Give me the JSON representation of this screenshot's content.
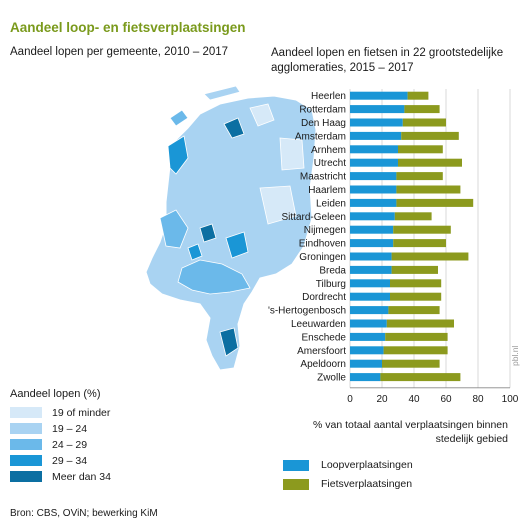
{
  "title": "Aandeel loop- en fietsverplaatsingen",
  "left_panel": {
    "subtitle": "Aandeel lopen per gemeente, 2010 – 2017",
    "legend_title": "Aandeel lopen (%)",
    "legend": [
      {
        "label": "19 of minder",
        "color": "#d6e9f8"
      },
      {
        "label": "19 – 24",
        "color": "#a9d3f2"
      },
      {
        "label": "24 – 29",
        "color": "#6bb9ea"
      },
      {
        "label": "29 – 34",
        "color": "#1a96d6"
      },
      {
        "label": "Meer dan 34",
        "color": "#0c6fa2"
      }
    ]
  },
  "source": "Bron: CBS, OViN; bewerking KiM",
  "credit": "pbl.nl",
  "chart_data": {
    "type": "bar",
    "orientation": "horizontal",
    "stacked": true,
    "title": "Aandeel lopen en fietsen in 22 grootstedelijke agglomeraties, 2015 – 2017",
    "xlabel": "% van totaal aantal verplaatsingen binnen stedelijk gebied",
    "xlim": [
      0,
      100
    ],
    "xticks": [
      0,
      20,
      40,
      60,
      80,
      100
    ],
    "grid": true,
    "categories": [
      "Heerlen",
      "Rotterdam",
      "Den Haag",
      "Amsterdam",
      "Arnhem",
      "Utrecht",
      "Maastricht",
      "Haarlem",
      "Leiden",
      "Sittard-Geleen",
      "Nijmegen",
      "Eindhoven",
      "Groningen",
      "Breda",
      "Tilburg",
      "Dordrecht",
      "'s-Hertogenbosch",
      "Leeuwarden",
      "Enschede",
      "Amersfoort",
      "Apeldoorn",
      "Zwolle"
    ],
    "series": [
      {
        "name": "Loopverplaatsingen",
        "color": "#1a96d6",
        "values": [
          36,
          34,
          33,
          32,
          30,
          30,
          29,
          29,
          29,
          28,
          27,
          27,
          26,
          26,
          25,
          25,
          24,
          23,
          22,
          21,
          20,
          19
        ]
      },
      {
        "name": "Fietsverplaatsingen",
        "color": "#8c9a1e",
        "values": [
          13,
          22,
          27,
          36,
          28,
          40,
          29,
          40,
          48,
          23,
          36,
          33,
          48,
          29,
          32,
          32,
          32,
          42,
          39,
          40,
          36,
          50
        ]
      }
    ]
  }
}
